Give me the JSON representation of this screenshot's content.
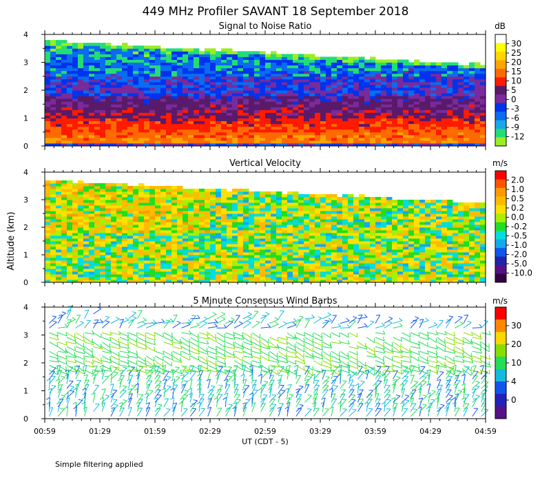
{
  "chart_data": {
    "type": "heatmap",
    "title": "449 MHz Profiler SAVANT 18 September 2018",
    "xlabel": "UT  (CDT - 5)",
    "ylabel": "Altitude (km)",
    "x_ticks": [
      "00:59",
      "01:29",
      "01:59",
      "02:29",
      "02:59",
      "03:29",
      "03:59",
      "04:29",
      "04:59"
    ],
    "y_ticks": [
      "0",
      "1",
      "2",
      "3",
      "4"
    ],
    "ylim": [
      0,
      4
    ],
    "panels": [
      {
        "title": "Signal to Noise Ratio",
        "kind": "heatmap",
        "units": "dB",
        "colorbar_labels": [
          "30",
          "25",
          "20",
          "15",
          "10",
          "5",
          "0",
          "-3",
          "-6",
          "-9",
          "-12"
        ],
        "colors": [
          "#ffffff",
          "#ffff00",
          "#ffd700",
          "#ffa500",
          "#ff6a00",
          "#ff1a00",
          "#5a1a6a",
          "#7a2a9a",
          "#0033ee",
          "#0a6cf0",
          "#18a8e8",
          "#22dd77",
          "#99ee22"
        ],
        "data_top_km": 3.8
      },
      {
        "title": "Vertical Velocity",
        "kind": "heatmap",
        "units": "m/s",
        "colorbar_labels": [
          "2.0",
          "1.0",
          "0.5",
          "0.2",
          "0.0",
          "-0.2",
          "-0.5",
          "-1.0",
          "-2.0",
          "-5.0",
          "-10.0"
        ],
        "colors": [
          "#ff0000",
          "#ff5500",
          "#ff9900",
          "#ffbb00",
          "#ffe000",
          "#aaee00",
          "#22dd22",
          "#00dddd",
          "#11aaee",
          "#1155ee",
          "#2222aa",
          "#551188",
          "#330044"
        ],
        "data_top_km": 3.7
      },
      {
        "title": "5 Minute Consensus Wind Barbs",
        "kind": "wind_barbs",
        "units": "m/s",
        "colorbar_labels": [
          "30",
          "20",
          "10",
          "4",
          "0"
        ],
        "colors": [
          "#ff0000",
          "#ff8800",
          "#ffd700",
          "#88dd00",
          "#22dd55",
          "#11bbdd",
          "#1155ee",
          "#2222bb",
          "#551188"
        ],
        "data_top_km": 4.0
      }
    ]
  },
  "footnote": "Simple filtering applied"
}
